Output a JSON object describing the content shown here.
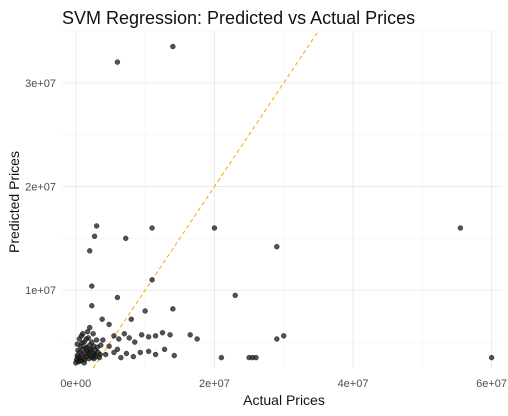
{
  "chart_data": {
    "type": "scatter",
    "title": "SVM Regression: Predicted vs Actual Prices",
    "xlabel": "Actual Prices",
    "ylabel": "Predicted Prices",
    "xlim": [
      -2000000,
      61500000
    ],
    "ylim": [
      2500000,
      35000000
    ],
    "x_ticks": [
      0,
      20000000,
      40000000,
      60000000
    ],
    "x_tick_labels": [
      "0e+00",
      "2e+07",
      "4e+07",
      "6e+07"
    ],
    "y_ticks": [
      10000000,
      20000000,
      30000000
    ],
    "y_tick_labels": [
      "1e+07",
      "2e+07",
      "3e+07"
    ],
    "grid": true,
    "reference_line": {
      "type": "y = x",
      "color": "#FFA500",
      "style": "dashed"
    },
    "point_color": "#1a1a1a",
    "points": [
      [
        14000000,
        33500000
      ],
      [
        6000000,
        32000000
      ],
      [
        3000000,
        16200000
      ],
      [
        2700000,
        15200000
      ],
      [
        7200000,
        15000000
      ],
      [
        11000000,
        16000000
      ],
      [
        20000000,
        16000000
      ],
      [
        55500000,
        16000000
      ],
      [
        29000000,
        14200000
      ],
      [
        2000000,
        13800000
      ],
      [
        11000000,
        11000000
      ],
      [
        2300000,
        10400000
      ],
      [
        23000000,
        9500000
      ],
      [
        6000000,
        9300000
      ],
      [
        2300000,
        8500000
      ],
      [
        14000000,
        8200000
      ],
      [
        10000000,
        8000000
      ],
      [
        3800000,
        7200000
      ],
      [
        8000000,
        7200000
      ],
      [
        4800000,
        6700000
      ],
      [
        5500000,
        5600000
      ],
      [
        6200000,
        5300000
      ],
      [
        7000000,
        5800000
      ],
      [
        7700000,
        5400000
      ],
      [
        8500000,
        5000000
      ],
      [
        9500000,
        5700000
      ],
      [
        10500000,
        5500000
      ],
      [
        11500000,
        5600000
      ],
      [
        12500000,
        5900000
      ],
      [
        13600000,
        5700000
      ],
      [
        16500000,
        5700000
      ],
      [
        17500000,
        5300000
      ],
      [
        29000000,
        5300000
      ],
      [
        30000000,
        5600000
      ],
      [
        21000000,
        3500000
      ],
      [
        25000000,
        3500000
      ],
      [
        25500000,
        3500000
      ],
      [
        26000000,
        3500000
      ],
      [
        60000000,
        3500000
      ],
      [
        6000000,
        4300000
      ],
      [
        7300000,
        3900000
      ],
      [
        8300000,
        3600000
      ],
      [
        9300000,
        4000000
      ],
      [
        10500000,
        4100000
      ],
      [
        11500000,
        3800000
      ],
      [
        12800000,
        4300000
      ],
      [
        14200000,
        3700000
      ],
      [
        4800000,
        4600000
      ],
      [
        5500000,
        4000000
      ],
      [
        6500000,
        3500000
      ],
      [
        3900000,
        5200000
      ],
      [
        4300000,
        3800000
      ],
      [
        0,
        3000000
      ],
      [
        100000,
        3300000
      ],
      [
        200000,
        3700000
      ],
      [
        300000,
        4200000
      ],
      [
        400000,
        3100000
      ],
      [
        500000,
        3500000
      ],
      [
        600000,
        4000000
      ],
      [
        700000,
        4600000
      ],
      [
        800000,
        3200000
      ],
      [
        900000,
        3800000
      ],
      [
        1000000,
        4300000
      ],
      [
        1100000,
        3500000
      ],
      [
        1200000,
        5000000
      ],
      [
        1300000,
        3300000
      ],
      [
        1400000,
        3900000
      ],
      [
        1500000,
        4500000
      ],
      [
        1600000,
        3600000
      ],
      [
        1700000,
        4100000
      ],
      [
        1800000,
        5400000
      ],
      [
        1900000,
        3400000
      ],
      [
        2000000,
        4700000
      ],
      [
        2100000,
        3700000
      ],
      [
        2200000,
        4300000
      ],
      [
        2300000,
        5000000
      ],
      [
        2400000,
        3500000
      ],
      [
        2500000,
        3900000
      ],
      [
        2600000,
        4600000
      ],
      [
        2700000,
        3800000
      ],
      [
        2800000,
        4200000
      ],
      [
        2900000,
        3600000
      ],
      [
        3000000,
        5200000
      ],
      [
        3200000,
        4000000
      ],
      [
        3400000,
        3500000
      ],
      [
        3600000,
        4700000
      ],
      [
        200000,
        4800000
      ],
      [
        500000,
        5300000
      ],
      [
        800000,
        5600000
      ],
      [
        1000000,
        5800000
      ],
      [
        1500000,
        5300000
      ],
      [
        1700000,
        6000000
      ],
      [
        2000000,
        6400000
      ],
      [
        2500000,
        5800000
      ],
      [
        300000,
        3500000
      ],
      [
        600000,
        3200000
      ],
      [
        900000,
        4900000
      ],
      [
        1200000,
        3000000
      ],
      [
        1400000,
        4400000
      ],
      [
        1800000,
        3900000
      ],
      [
        2100000,
        4200000
      ],
      [
        2600000,
        3400000
      ],
      [
        3100000,
        4500000
      ],
      [
        3500000,
        3800000
      ]
    ]
  }
}
